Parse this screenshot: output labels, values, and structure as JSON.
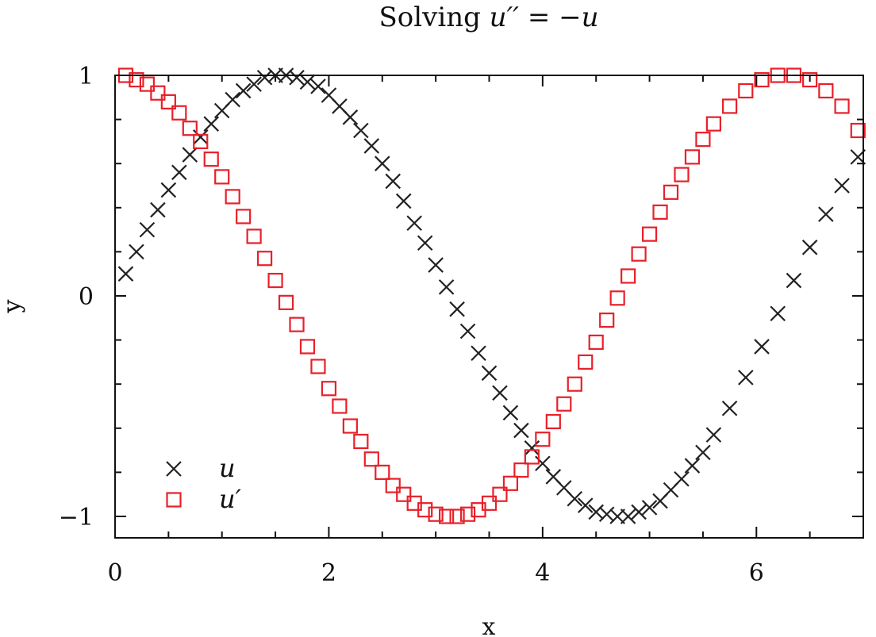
{
  "chart_data": {
    "type": "scatter",
    "title": {
      "prefix": "Solving ",
      "equation": "u′′ = −u"
    },
    "xlabel": "x",
    "ylabel": "y",
    "xlim": [
      0,
      7
    ],
    "ylim": [
      -1.1,
      1.0
    ],
    "xticks": [
      0,
      2,
      4,
      6
    ],
    "xtick_labels": [
      "0",
      "2",
      "4",
      "6"
    ],
    "yticks": [
      -1,
      0,
      1
    ],
    "ytick_labels": [
      "−1",
      "0",
      "1"
    ],
    "legend_position": "bottom-left",
    "series": [
      {
        "name": "u",
        "marker": "cross",
        "color": "#222222",
        "x": [
          0.1,
          0.2,
          0.3,
          0.4,
          0.5,
          0.6,
          0.7,
          0.8,
          0.9,
          1.0,
          1.1,
          1.2,
          1.3,
          1.4,
          1.5,
          1.6,
          1.7,
          1.8,
          1.9,
          2.0,
          2.1,
          2.2,
          2.3,
          2.4,
          2.5,
          2.6,
          2.7,
          2.8,
          2.9,
          3.0,
          3.1,
          3.2,
          3.3,
          3.4,
          3.5,
          3.6,
          3.7,
          3.8,
          3.9,
          4.0,
          4.1,
          4.2,
          4.3,
          4.4,
          4.5,
          4.6,
          4.7,
          4.8,
          4.9,
          5.0,
          5.1,
          5.2,
          5.3,
          5.4,
          5.5,
          5.6,
          5.75,
          5.9,
          6.05,
          6.2,
          6.35,
          6.5,
          6.65,
          6.8,
          6.95
        ],
        "y": [
          0.1,
          0.2,
          0.3,
          0.39,
          0.48,
          0.56,
          0.64,
          0.72,
          0.78,
          0.84,
          0.89,
          0.93,
          0.96,
          0.99,
          1.0,
          1.0,
          0.99,
          0.97,
          0.95,
          0.91,
          0.86,
          0.81,
          0.75,
          0.68,
          0.6,
          0.52,
          0.43,
          0.33,
          0.24,
          0.14,
          0.04,
          -0.06,
          -0.16,
          -0.26,
          -0.35,
          -0.44,
          -0.53,
          -0.61,
          -0.69,
          -0.76,
          -0.82,
          -0.87,
          -0.92,
          -0.95,
          -0.98,
          -0.99,
          -1.0,
          -1.0,
          -0.98,
          -0.96,
          -0.93,
          -0.88,
          -0.83,
          -0.77,
          -0.71,
          -0.63,
          -0.51,
          -0.37,
          -0.23,
          -0.08,
          0.07,
          0.22,
          0.37,
          0.5,
          0.63
        ]
      },
      {
        "name": "u′",
        "marker": "square",
        "color": "#e8202a",
        "x": [
          0.1,
          0.2,
          0.3,
          0.4,
          0.5,
          0.6,
          0.7,
          0.8,
          0.9,
          1.0,
          1.1,
          1.2,
          1.3,
          1.4,
          1.5,
          1.6,
          1.7,
          1.8,
          1.9,
          2.0,
          2.1,
          2.2,
          2.3,
          2.4,
          2.5,
          2.6,
          2.7,
          2.8,
          2.9,
          3.0,
          3.1,
          3.2,
          3.3,
          3.4,
          3.5,
          3.6,
          3.7,
          3.8,
          3.9,
          4.0,
          4.1,
          4.2,
          4.3,
          4.4,
          4.5,
          4.6,
          4.7,
          4.8,
          4.9,
          5.0,
          5.1,
          5.2,
          5.3,
          5.4,
          5.5,
          5.6,
          5.75,
          5.9,
          6.05,
          6.2,
          6.35,
          6.5,
          6.65,
          6.8,
          6.95
        ],
        "y": [
          1.0,
          0.98,
          0.96,
          0.92,
          0.88,
          0.83,
          0.76,
          0.7,
          0.62,
          0.54,
          0.45,
          0.36,
          0.27,
          0.17,
          0.07,
          -0.03,
          -0.13,
          -0.23,
          -0.32,
          -0.42,
          -0.5,
          -0.59,
          -0.66,
          -0.74,
          -0.8,
          -0.86,
          -0.9,
          -0.94,
          -0.97,
          -0.99,
          -1.0,
          -1.0,
          -0.99,
          -0.97,
          -0.94,
          -0.9,
          -0.85,
          -0.79,
          -0.73,
          -0.65,
          -0.57,
          -0.49,
          -0.4,
          -0.3,
          -0.21,
          -0.11,
          -0.01,
          0.09,
          0.19,
          0.28,
          0.38,
          0.47,
          0.55,
          0.63,
          0.71,
          0.78,
          0.86,
          0.93,
          0.98,
          1.0,
          1.0,
          0.98,
          0.93,
          0.86,
          0.75
        ]
      }
    ]
  }
}
